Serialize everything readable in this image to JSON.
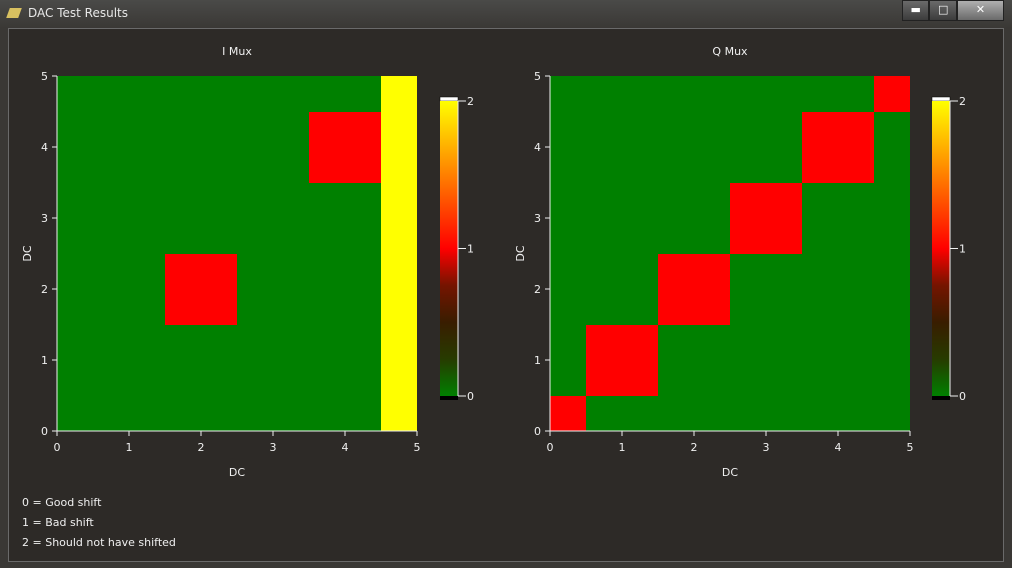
{
  "window": {
    "title": "DAC Test Results"
  },
  "chart_data": [
    {
      "type": "heatmap",
      "title": "I Mux",
      "xlabel": "DC",
      "ylabel": "DC",
      "x": [
        0,
        1,
        2,
        3,
        4,
        5
      ],
      "y": [
        0,
        1,
        2,
        3,
        4,
        5
      ],
      "z": [
        [
          0,
          0,
          0,
          0,
          0,
          2
        ],
        [
          0,
          0,
          0,
          0,
          0,
          2
        ],
        [
          0,
          0,
          1,
          0,
          0,
          2
        ],
        [
          0,
          0,
          0,
          0,
          0,
          2
        ],
        [
          0,
          0,
          0,
          0,
          1,
          2
        ],
        [
          0,
          0,
          0,
          0,
          0,
          2
        ]
      ],
      "xlim": [
        0,
        5
      ],
      "ylim": [
        0,
        5
      ],
      "xticks": [
        0,
        1,
        2,
        3,
        4,
        5
      ],
      "yticks": [
        0,
        1,
        2,
        3,
        4,
        5
      ],
      "zlim": [
        0,
        2
      ],
      "zticks": [
        0,
        1,
        2
      ],
      "colorscale": [
        "#008000",
        "#ff0000",
        "#ffff00"
      ]
    },
    {
      "type": "heatmap",
      "title": "Q Mux",
      "xlabel": "DC",
      "ylabel": "DC",
      "x": [
        0,
        1,
        2,
        3,
        4,
        5
      ],
      "y": [
        0,
        1,
        2,
        3,
        4,
        5
      ],
      "z": [
        [
          1,
          0,
          0,
          0,
          0,
          0
        ],
        [
          0,
          1,
          0,
          0,
          0,
          0
        ],
        [
          0,
          0,
          1,
          0,
          0,
          0
        ],
        [
          0,
          0,
          0,
          1,
          0,
          0
        ],
        [
          0,
          0,
          0,
          0,
          1,
          0
        ],
        [
          0,
          0,
          0,
          0,
          0,
          1
        ]
      ],
      "xlim": [
        0,
        5
      ],
      "ylim": [
        0,
        5
      ],
      "xticks": [
        0,
        1,
        2,
        3,
        4,
        5
      ],
      "yticks": [
        0,
        1,
        2,
        3,
        4,
        5
      ],
      "zlim": [
        0,
        2
      ],
      "zticks": [
        0,
        1,
        2
      ],
      "colorscale": [
        "#008000",
        "#ff0000",
        "#ffff00"
      ]
    }
  ],
  "notes": [
    "0 = Good shift",
    "1 = Bad shift",
    "2 = Should not have shifted"
  ]
}
